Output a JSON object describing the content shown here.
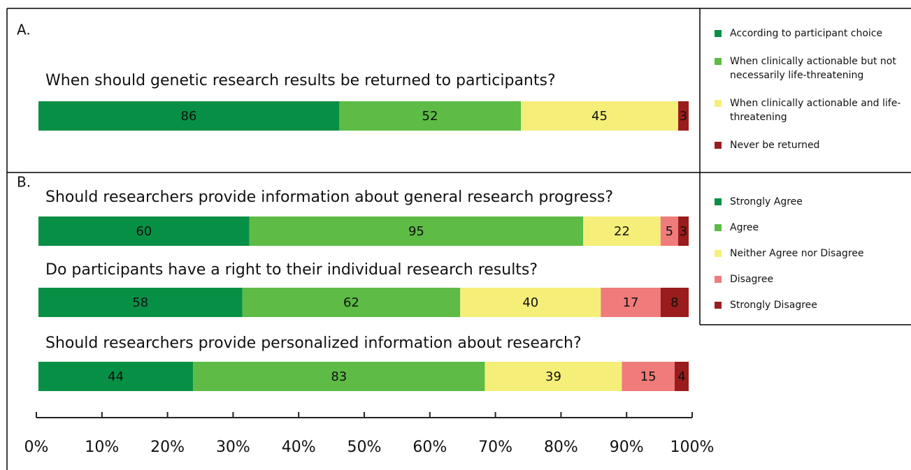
{
  "chart_data": [
    {
      "type": "bar",
      "stacked": "percent",
      "panel": "A.",
      "categories": [
        "When should genetic research results be returned to participants?"
      ],
      "series": [
        {
          "name": "According to participant choice",
          "color": "#078f45",
          "values": [
            86
          ]
        },
        {
          "name": "When clinically actionable but not necessarily life-threatening",
          "color": "#5dbb46",
          "values": [
            52
          ]
        },
        {
          "name": "When clinically actionable and life-threatening",
          "color": "#f5ef7a",
          "values": [
            45
          ]
        },
        {
          "name": "Never be returned",
          "color": "#9a1c1c",
          "values": [
            3
          ]
        }
      ]
    },
    {
      "type": "bar",
      "stacked": "percent",
      "panel": "B.",
      "categories": [
        "Should researchers provide information about general research progress?",
        "Do participants have a right to their individual research results?",
        "Should researchers provide personalized information about research?"
      ],
      "series": [
        {
          "name": "Strongly Agree",
          "color": "#078f45",
          "values": [
            60,
            58,
            44
          ]
        },
        {
          "name": "Agree",
          "color": "#5dbb46",
          "values": [
            95,
            62,
            83
          ]
        },
        {
          "name": "Neither Agree nor Disagree",
          "color": "#f5ef7a",
          "values": [
            22,
            40,
            39
          ]
        },
        {
          "name": "Disagree",
          "color": "#f07b7b",
          "values": [
            5,
            17,
            15
          ]
        },
        {
          "name": "Strongly Disagree",
          "color": "#9a1c1c",
          "values": [
            3,
            8,
            4
          ]
        }
      ],
      "xlim": [
        0,
        100
      ],
      "xticks": [
        {
          "value": 0,
          "label": "0%"
        },
        {
          "value": 10,
          "label": "10%"
        },
        {
          "value": 20,
          "label": "20%"
        },
        {
          "value": 30,
          "label": "30%"
        },
        {
          "value": 40,
          "label": "40%"
        },
        {
          "value": 50,
          "label": "50%"
        },
        {
          "value": 60,
          "label": "60%"
        },
        {
          "value": 70,
          "label": "70%"
        },
        {
          "value": 80,
          "label": "80%"
        },
        {
          "value": 90,
          "label": "90%"
        },
        {
          "value": 100,
          "label": "100%"
        }
      ]
    }
  ]
}
